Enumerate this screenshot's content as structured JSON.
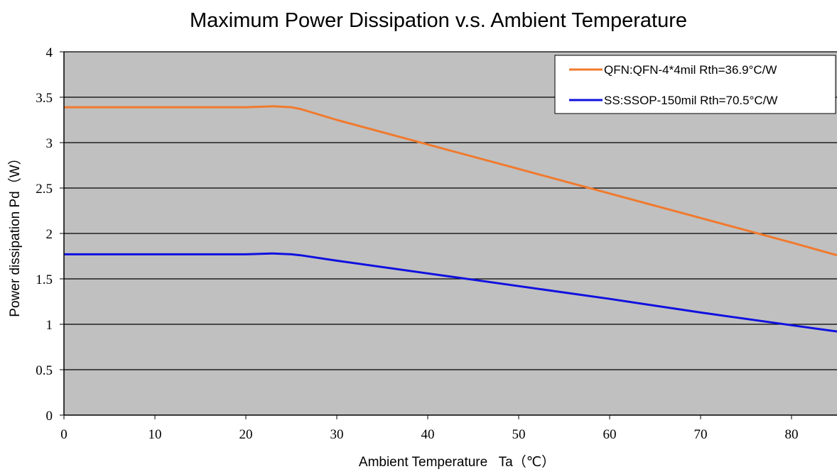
{
  "chart_data": {
    "type": "line",
    "title": "Maximum Power Dissipation v.s. Ambient Temperature",
    "xlabel": "Ambient Temperature   Ta（℃）",
    "ylabel": "Power dissipation Pd（W）",
    "xlim": [
      0,
      85
    ],
    "ylim": [
      0,
      4
    ],
    "xticks": [
      0,
      10,
      20,
      30,
      40,
      50,
      60,
      70,
      80
    ],
    "yticks": [
      0,
      0.5,
      1,
      1.5,
      2,
      2.5,
      3,
      3.5,
      4
    ],
    "ytick_labels": [
      "0",
      "0.5",
      "1",
      "1.5",
      "2",
      "2.5",
      "3",
      "3.5",
      "4"
    ],
    "grid": "horizontal",
    "legend_position": "top-right",
    "plot_background": "#c0c0c0",
    "series": [
      {
        "name": "QFN:QFN-4*4mil Rth=36.9°C/W",
        "color": "#f07a2e",
        "x": [
          0,
          20,
          23,
          25,
          26,
          30,
          40,
          50,
          60,
          70,
          80,
          85
        ],
        "y": [
          3.39,
          3.39,
          3.4,
          3.39,
          3.37,
          3.25,
          2.98,
          2.71,
          2.44,
          2.17,
          1.9,
          1.76
        ]
      },
      {
        "name": "SS:SSOP-150mil Rth=70.5°C/W",
        "color": "#1010e0",
        "x": [
          0,
          20,
          23,
          25,
          26,
          30,
          40,
          50,
          60,
          70,
          80,
          85
        ],
        "y": [
          1.77,
          1.77,
          1.78,
          1.77,
          1.76,
          1.7,
          1.56,
          1.42,
          1.28,
          1.13,
          0.99,
          0.92
        ]
      }
    ]
  }
}
